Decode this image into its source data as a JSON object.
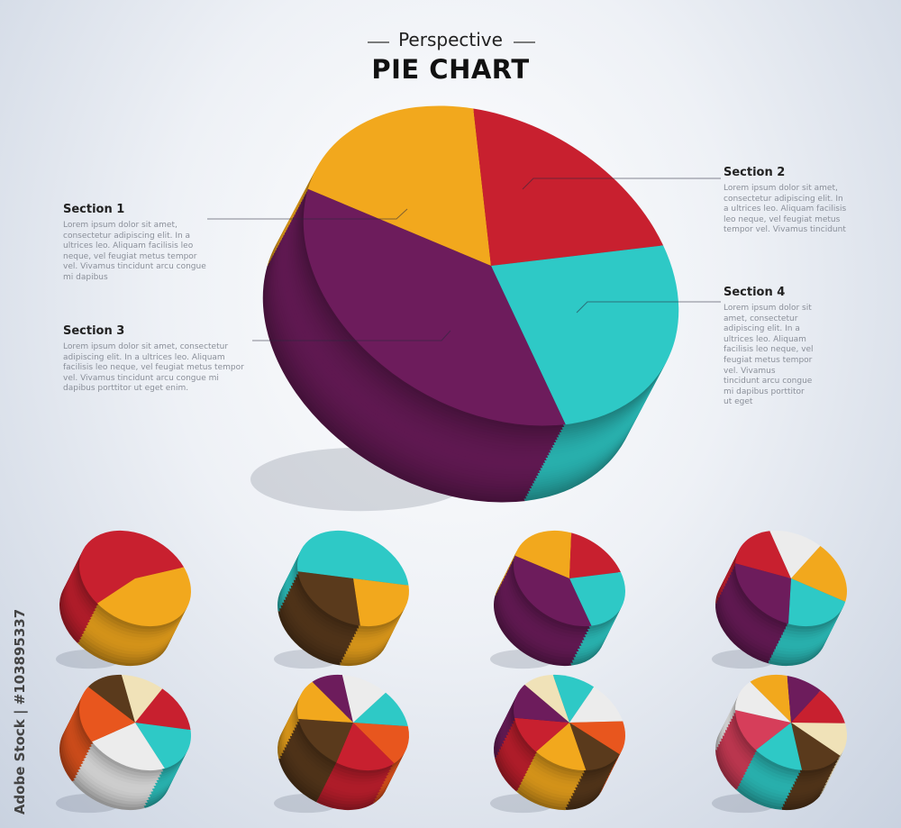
{
  "chart_data": [
    {
      "type": "pie",
      "subtitle": "Perspective",
      "title": "PIE CHART",
      "categories": [
        "Section 1",
        "Section 2",
        "Section 4",
        "Section 3"
      ],
      "values": [
        20,
        20,
        25,
        35
      ],
      "colors": [
        "#f2a81d",
        "#c8202f",
        "#2ec9c6",
        "#6d1c5c"
      ],
      "descriptions": [
        "Lorem ipsum dolor sit amet, consectetur adipiscing elit. In a ultrices leo. Aliquam facilisis leo neque, vel feugiat metus tempor vel. Vivamus tincidunt arcu congue mi dapibus",
        "Lorem ipsum dolor sit amet, consectetur adipiscing elit. In a ultrices leo. Aliquam facilisis leo neque, vel feugiat metus tempor vel. Vivamus tincidunt",
        "Lorem ipsum dolor sit amet, consectetur adipiscing elit. In a ultrices leo. Aliquam facilisis leo neque, vel feugiat metus tempor vel. Vivamus tincidunt arcu congue mi dapibus porttitor ut eget",
        "Lorem ipsum dolor sit amet, consectetur adipiscing elit. In a ultrices leo. Aliquam facilisis leo neque, vel feugiat metus tempor vel. Vivamus tincidunt arcu congue mi dapibus porttitor ut eget enim."
      ]
    },
    {
      "type": "pie",
      "values": [
        55,
        45
      ],
      "colors": [
        "#c8202f",
        "#f2a81d"
      ]
    },
    {
      "type": "pie",
      "values": [
        50,
        25,
        25
      ],
      "colors": [
        "#2ec9c6",
        "#f2a81d",
        "#5a3a1c"
      ]
    },
    {
      "type": "pie",
      "values": [
        22,
        18,
        25,
        35
      ],
      "colors": [
        "#f2a81d",
        "#c8202f",
        "#2ec9c6",
        "#6d1c5c"
      ]
    },
    {
      "type": "pie",
      "values": [
        18,
        15,
        20,
        22,
        25
      ],
      "colors": [
        "#c8202f",
        "#ececec",
        "#f2a81d",
        "#2ec9c6",
        "#6d1c5c"
      ]
    },
    {
      "type": "pie",
      "values": [
        12,
        12,
        15,
        18,
        23,
        20
      ],
      "colors": [
        "#5a3a1c",
        "#f0e2b8",
        "#c8202f",
        "#2ec9c6",
        "#ececec",
        "#e8561e"
      ]
    },
    {
      "type": "pie",
      "values": [
        10,
        13,
        12,
        15,
        18,
        17,
        15
      ],
      "colors": [
        "#6d1c5c",
        "#ececec",
        "#2ec9c6",
        "#e8561e",
        "#c8202f",
        "#5a3a1c",
        "#f2a81d"
      ]
    },
    {
      "type": "pie",
      "values": [
        12,
        13,
        12,
        13,
        15,
        12,
        13,
        10
      ],
      "colors": [
        "#2ec9c6",
        "#ececec",
        "#e8561e",
        "#5a3a1c",
        "#f2a81d",
        "#c8202f",
        "#6d1c5c",
        "#f0e2b8"
      ]
    },
    {
      "type": "pie",
      "values": [
        12,
        10,
        12,
        12,
        14,
        14,
        14,
        12
      ],
      "colors": [
        "#f2a81d",
        "#6d1c5c",
        "#c8202f",
        "#f0e2b8",
        "#5a3a1c",
        "#2ec9c6",
        "#d63e5a",
        "#ececec"
      ]
    }
  ],
  "watermark": "Adobe Stock | #103895337"
}
